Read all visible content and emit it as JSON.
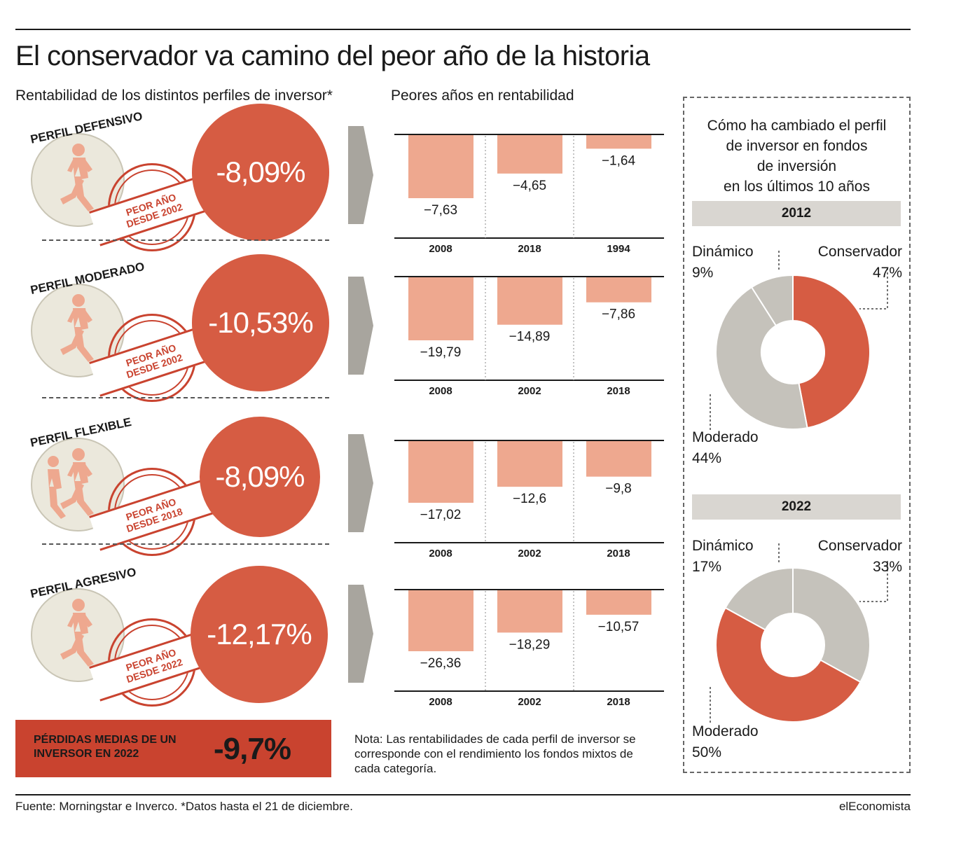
{
  "title": "El conservador va camino del peor año de la historia",
  "left_subtitle": "Rentabilidad de los distintos perfiles de inversor*",
  "mid_subtitle": "Peores años en rentabilidad",
  "profiles": [
    {
      "name": "PERFIL DEFENSIVO",
      "value": "-8,09%",
      "stamp_line1": "PEOR AÑO",
      "stamp_line2": "DESDE 2002"
    },
    {
      "name": "PERFIL MODERADO",
      "value": "-10,53%",
      "stamp_line1": "PEOR AÑO",
      "stamp_line2": "DESDE 2002"
    },
    {
      "name": "PERFIL FLEXIBLE",
      "value": "-8,09%",
      "stamp_line1": "PEOR AÑO",
      "stamp_line2": "DESDE 2018"
    },
    {
      "name": "PERFIL AGRESIVO",
      "value": "-12,17%",
      "stamp_line1": "PEOR AÑO",
      "stamp_line2": "DESDE 2022"
    }
  ],
  "loss_box": {
    "label": "PÉRDIDAS MEDIAS DE UN INVERSOR EN 2022",
    "value": "-9,7%"
  },
  "note": "Nota: Las rentabilidades de cada perfil de inversor se corresponde con el rendimiento los fondos mixtos de cada categoría.",
  "pie_title_lines": [
    "Cómo ha cambiado el perfil",
    "de inversor en fondos",
    "de inversión",
    "en los últimos 10 años"
  ],
  "source": "Fuente: Morningstar e Inverco. *Datos hasta el 21 de diciembre.",
  "brand": "elEconomista",
  "colors": {
    "accent": "#d65c43",
    "bar": "#eea88f",
    "grey": "#c5c2bb",
    "dark_red": "#c9432f"
  },
  "chart_data": [
    {
      "type": "bar",
      "categories": [
        "2008",
        "2018",
        "1994"
      ],
      "values": [
        -7.63,
        -4.65,
        -1.64
      ],
      "labels": [
        "−7,63",
        "−4,65",
        "−1,64"
      ]
    },
    {
      "type": "bar",
      "categories": [
        "2008",
        "2002",
        "2018"
      ],
      "values": [
        -19.79,
        -14.89,
        -7.86
      ],
      "labels": [
        "−19,79",
        "−14,89",
        "−7,86"
      ]
    },
    {
      "type": "bar",
      "categories": [
        "2008",
        "2002",
        "2018"
      ],
      "values": [
        -17.02,
        -12.6,
        -9.8
      ],
      "labels": [
        "−17,02",
        "−12,6",
        "−9,8"
      ]
    },
    {
      "type": "bar",
      "categories": [
        "2008",
        "2002",
        "2018"
      ],
      "values": [
        -26.36,
        -18.29,
        -10.57
      ],
      "labels": [
        "−26,36",
        "−18,29",
        "−10,57"
      ]
    },
    {
      "type": "pie",
      "title": "2012",
      "slices": [
        {
          "name": "Conservador",
          "value": 47,
          "label": "47%"
        },
        {
          "name": "Moderado",
          "value": 44,
          "label": "44%"
        },
        {
          "name": "Dinámico",
          "value": 9,
          "label": "9%"
        }
      ]
    },
    {
      "type": "pie",
      "title": "2022",
      "slices": [
        {
          "name": "Conservador",
          "value": 33,
          "label": "33%"
        },
        {
          "name": "Moderado",
          "value": 50,
          "label": "50%"
        },
        {
          "name": "Dinámico",
          "value": 17,
          "label": "17%"
        }
      ]
    }
  ]
}
